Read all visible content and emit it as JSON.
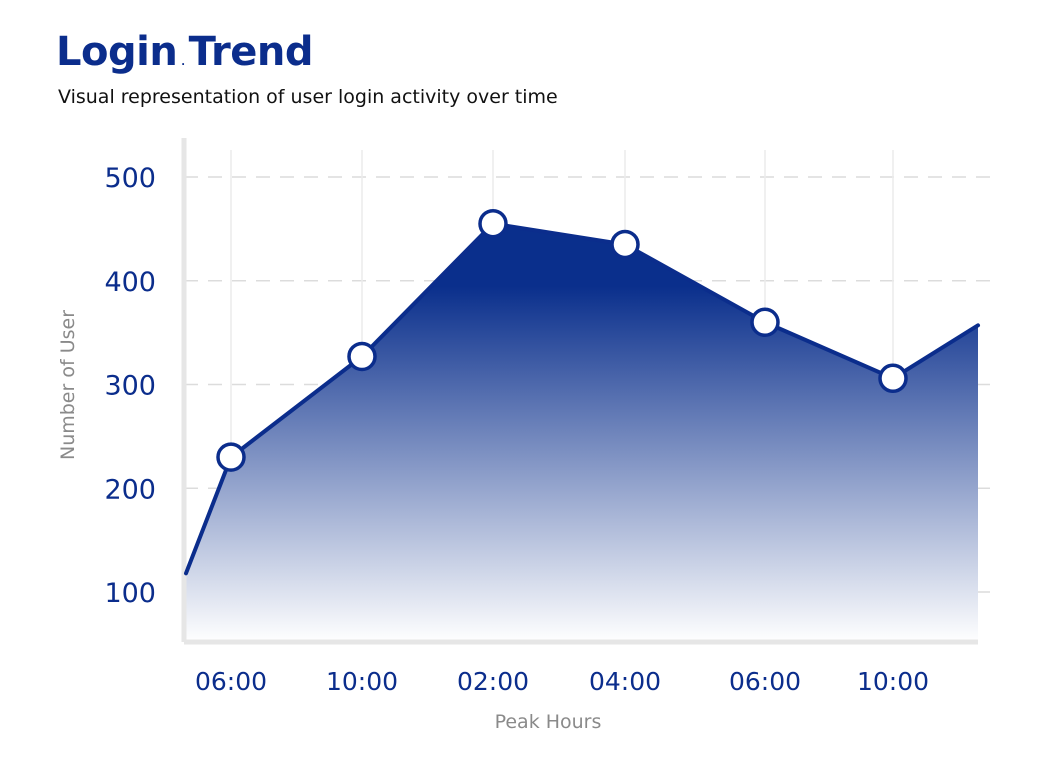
{
  "header": {
    "title_part1": "Login",
    "title_sep": ".",
    "title_part2": "Trend",
    "subtitle": "Visual representation of user login activity over time"
  },
  "chart_data": {
    "type": "area",
    "title": "Login Trend",
    "subtitle": "Visual representation of user login activity over time",
    "xlabel": "Peak Hours",
    "ylabel": "Number of User",
    "categories": [
      "06:00",
      "10:00",
      "02:00",
      "04:00",
      "06:00",
      "10:00"
    ],
    "values": [
      230,
      327,
      455,
      435,
      360,
      306
    ],
    "leading_value": 118,
    "trailing_value": 357,
    "yticks": [
      100,
      200,
      300,
      400,
      500
    ],
    "ylim": [
      50,
      525
    ],
    "grid": true,
    "legend": "none",
    "colors": {
      "line": "#0b2d8c",
      "fill_top": "#0a2f8c",
      "fill_bottom": "#ffffff",
      "marker_fill": "#ffffff",
      "grid": "#dcdcdc",
      "axis": "#e6e6e6"
    }
  }
}
